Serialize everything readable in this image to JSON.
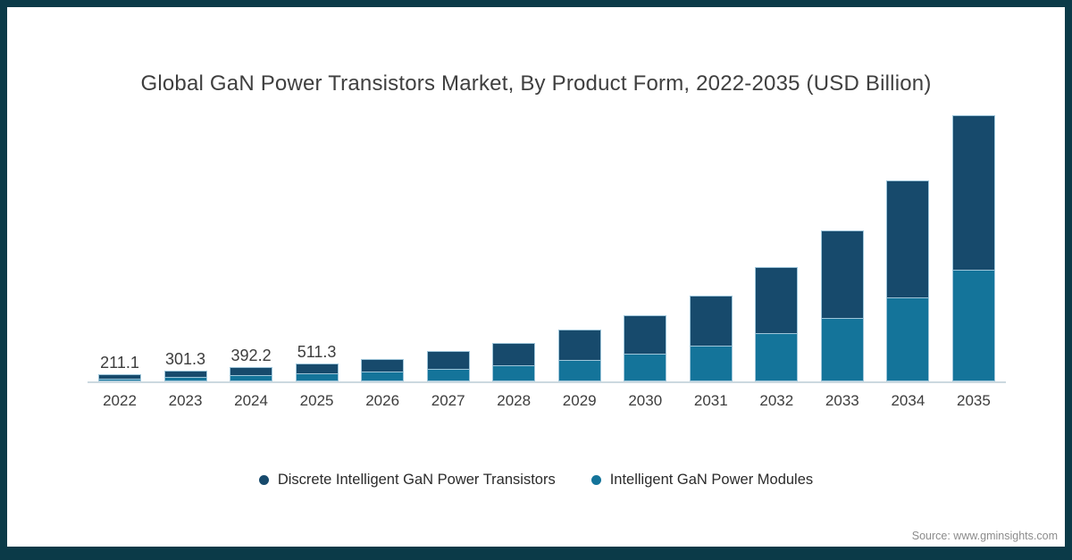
{
  "title": "Global GaN Power Transistors Market, By Product Form, 2022-2035 (USD Billion)",
  "source": "Source: www.gminsights.com",
  "colors": {
    "discrete": "#174A6C",
    "modules": "#14749A",
    "frame": "#0B3A48",
    "axis_line": "#ccd9e0",
    "segment_stroke": "#9fc6da",
    "text": "#3d3d3d",
    "source_text": "#8c8c8c"
  },
  "legend": [
    {
      "label": "Discrete Intelligent GaN Power Transistors",
      "color": "#174A6C"
    },
    {
      "label": "Intelligent GaN Power Modules",
      "color": "#14749A"
    }
  ],
  "chart_data": {
    "type": "bar",
    "stacked": true,
    "title": "Global GaN Power Transistors Market, By Product Form, 2022-2035 (USD Billion)",
    "units": "USD Billion",
    "xlabel": "",
    "ylabel": "",
    "grid": false,
    "legend_position": "bottom",
    "categories": [
      "2022",
      "2023",
      "2024",
      "2025",
      "2026",
      "2027",
      "2028",
      "2029",
      "2030",
      "2031",
      "2032",
      "2033",
      "2034",
      "2035"
    ],
    "totals": [
      211.1,
      301.3,
      392.2,
      511.3,
      630,
      850,
      1080,
      1440,
      1850,
      2410,
      3200,
      4230,
      5620,
      7460
    ],
    "totals_estimated_from_index": 4,
    "data_labels": [
      "211.1",
      "301.3",
      "392.2",
      "511.3",
      "",
      "",
      "",
      "",
      "",
      "",
      "",
      "",
      "",
      ""
    ],
    "series": [
      {
        "name": "Discrete Intelligent GaN Power Transistors",
        "stack_position": "top",
        "color": "#174A6C",
        "values": [
          122.4,
          174.8,
          227.5,
          296.6,
          365.4,
          493.0,
          626.4,
          835.2,
          1073.0,
          1397.8,
          1856.0,
          2453.4,
          3259.6,
          4326.8
        ]
      },
      {
        "name": "Intelligent GaN Power Modules",
        "stack_position": "bottom",
        "color": "#14749A",
        "values": [
          88.7,
          126.5,
          164.7,
          214.7,
          264.6,
          357.0,
          453.6,
          604.8,
          777.0,
          1012.2,
          1344.0,
          1776.6,
          2360.4,
          3133.2
        ]
      }
    ]
  }
}
